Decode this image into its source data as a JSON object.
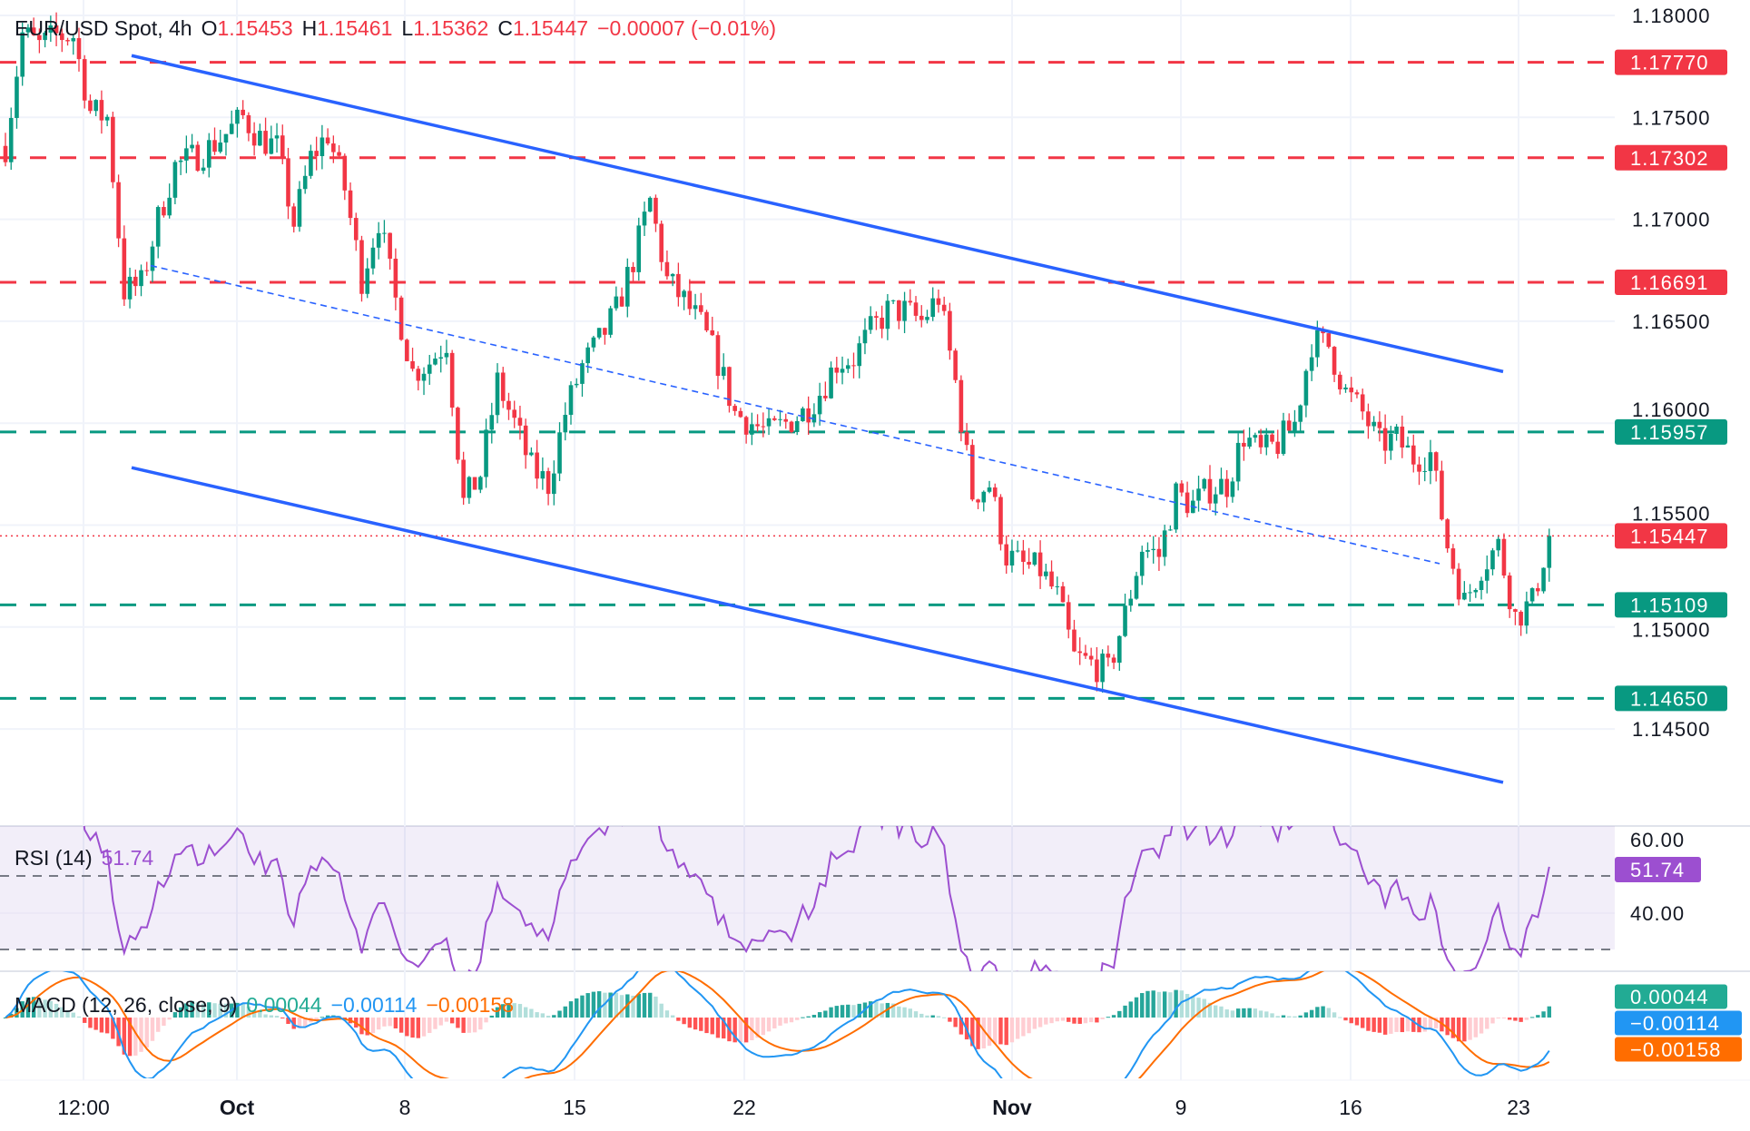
{
  "header": {
    "symbol": "EUR/USD Spot, 4h",
    "o_label": "O",
    "o": "1.15453",
    "h_label": "H",
    "h": "1.15461",
    "l_label": "L",
    "l": "1.15362",
    "c_label": "C",
    "c": "1.15447",
    "change": "−0.00007 (−0.01%)"
  },
  "colors": {
    "up": "#089981",
    "down": "#f23645",
    "trendline": "#2962ff",
    "rsi": "#9c4fd0",
    "macd": "#2196f3",
    "signal": "#ff6d00",
    "resistance": "#f23645",
    "support": "#089981"
  },
  "rsi": {
    "label": "RSI (14)",
    "value": "51.74",
    "ticks": [
      "60.00",
      "40.00"
    ]
  },
  "macd": {
    "label": "MACD (12, 26, close, 9)",
    "hist": "0.00044",
    "macd": "−0.00114",
    "signal": "−0.00158"
  },
  "chart_data": {
    "type": "candlestick",
    "title": "EUR/USD Spot, 4h",
    "y_ticks": [
      "1.18000",
      "1.17500",
      "1.17000",
      "1.16500",
      "1.16000",
      "1.15500",
      "1.15000",
      "1.14500"
    ],
    "ylim": [
      1.1395,
      1.1815
    ],
    "x_ticks": [
      {
        "label": "12:00",
        "bold": false
      },
      {
        "label": "Oct",
        "bold": true
      },
      {
        "label": "8",
        "bold": false
      },
      {
        "label": "15",
        "bold": false
      },
      {
        "label": "22",
        "bold": false
      },
      {
        "label": "Nov",
        "bold": true
      },
      {
        "label": "9",
        "bold": false
      },
      {
        "label": "16",
        "bold": false
      },
      {
        "label": "23",
        "bold": false
      }
    ],
    "close_path_12h": [
      1.1736,
      1.1791,
      1.1785,
      1.179,
      1.179,
      1.1753,
      1.175,
      1.1665,
      1.1668,
      1.17,
      1.1726,
      1.173,
      1.1735,
      1.1742,
      1.175,
      1.174,
      1.1735,
      1.1698,
      1.173,
      1.1742,
      1.1715,
      1.1671,
      1.17,
      1.166,
      1.1625,
      1.163,
      1.164,
      1.1561,
      1.1575,
      1.162,
      1.16,
      1.1578,
      1.157,
      1.1605,
      1.1628,
      1.164,
      1.1655,
      1.168,
      1.1709,
      1.167,
      1.166,
      1.1648,
      1.163,
      1.1605,
      1.16,
      1.1595,
      1.16,
      1.1605,
      1.1615,
      1.163,
      1.1632,
      1.1645,
      1.1655,
      1.1655,
      1.165,
      1.1662,
      1.162,
      1.1565,
      1.157,
      1.1535,
      1.153,
      1.1528,
      1.1515,
      1.1485,
      1.1482,
      1.1478,
      1.1506,
      1.1539,
      1.1535,
      1.1565,
      1.156,
      1.1568,
      1.157,
      1.1594,
      1.1585,
      1.159,
      1.16,
      1.164,
      1.1638,
      1.1615,
      1.1605,
      1.159,
      1.1592,
      1.1583,
      1.1585,
      1.154,
      1.1512,
      1.153,
      1.154,
      1.1505,
      1.1512,
      1.15447
    ],
    "levels": [
      {
        "price": "1.17770",
        "kind": "resistance"
      },
      {
        "price": "1.17302",
        "kind": "resistance"
      },
      {
        "price": "1.16691",
        "kind": "resistance"
      },
      {
        "price": "1.15957",
        "kind": "support"
      },
      {
        "price": "1.15109",
        "kind": "support"
      },
      {
        "price": "1.14650",
        "kind": "support"
      }
    ],
    "current_price": "1.15447",
    "trendlines": [
      {
        "name": "channel-upper",
        "start": 1.17803,
        "end": 1.16253,
        "style": "solid"
      },
      {
        "name": "channel-lower",
        "start": 1.15782,
        "end": 1.14238,
        "style": "solid"
      },
      {
        "name": "channel-mid",
        "start": 1.16773,
        "end": 1.15311,
        "style": "dashed"
      }
    ]
  }
}
